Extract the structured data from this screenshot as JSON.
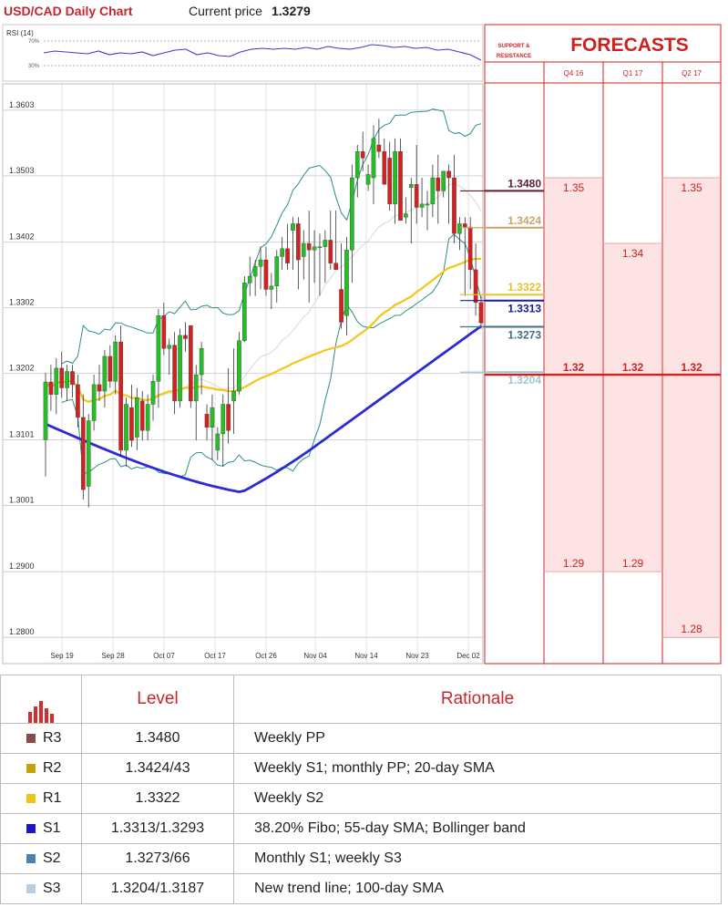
{
  "header": {
    "title": "USD/CAD Daily Chart",
    "price_label": "Current price",
    "price_value": "1.3279"
  },
  "chart_data": {
    "type": "candlestick",
    "title": "USD/CAD Daily Chart",
    "ylim": [
      1.276,
      1.3625
    ],
    "y_ticks": [
      "1.3603",
      "1.3503",
      "1.3402",
      "1.3302",
      "1.3202",
      "1.3101",
      "1.3001",
      "1.2900",
      "1.2800"
    ],
    "x_ticks": [
      "Sep 19",
      "Sep 28",
      "Oct 07",
      "Oct 17",
      "Oct 26",
      "Nov 04",
      "Nov 14",
      "Nov 23",
      "Dec 02"
    ],
    "rsi": {
      "label": "RSI (14)",
      "levels": [
        "70%",
        "30%"
      ]
    },
    "series_colors": {
      "sma20": "#f5c518",
      "sma55": "#2a2ad6",
      "bollinger": "#2e8b8b",
      "bull": "#22c022",
      "bear": "#d62020"
    },
    "candles": [
      [
        1.3101,
        1.3203,
        1.3045,
        1.3189
      ],
      [
        1.3189,
        1.3215,
        1.3145,
        1.317
      ],
      [
        1.317,
        1.3225,
        1.314,
        1.321
      ],
      [
        1.321,
        1.3235,
        1.3165,
        1.318
      ],
      [
        1.318,
        1.3215,
        1.316,
        1.3205
      ],
      [
        1.3205,
        1.3215,
        1.3165,
        1.3185
      ],
      [
        1.3185,
        1.32,
        1.312,
        1.3135
      ],
      [
        1.3135,
        1.317,
        1.301,
        1.3025
      ],
      [
        1.303,
        1.314,
        1.2998,
        1.313
      ],
      [
        1.313,
        1.32,
        1.3115,
        1.3185
      ],
      [
        1.3185,
        1.3215,
        1.316,
        1.3175
      ],
      [
        1.3175,
        1.3238,
        1.315,
        1.3228
      ],
      [
        1.3228,
        1.3245,
        1.318,
        1.319
      ],
      [
        1.319,
        1.326,
        1.317,
        1.325
      ],
      [
        1.325,
        1.3275,
        1.3075,
        1.3085
      ],
      [
        1.3085,
        1.3165,
        1.306,
        1.3155
      ],
      [
        1.315,
        1.3185,
        1.309,
        1.31
      ],
      [
        1.3105,
        1.318,
        1.3085,
        1.3165
      ],
      [
        1.316,
        1.3175,
        1.31,
        1.3115
      ],
      [
        1.3115,
        1.317,
        1.31,
        1.3155
      ],
      [
        1.3155,
        1.32,
        1.313,
        1.319
      ],
      [
        1.319,
        1.33,
        1.315,
        1.329
      ],
      [
        1.329,
        1.331,
        1.323,
        1.324
      ],
      [
        1.324,
        1.3255,
        1.32,
        1.3245
      ],
      [
        1.3245,
        1.3265,
        1.314,
        1.316
      ],
      [
        1.316,
        1.327,
        1.315,
        1.326
      ],
      [
        1.326,
        1.328,
        1.3235,
        1.3255
      ],
      [
        1.3275,
        1.3275,
        1.315,
        1.316
      ],
      [
        1.316,
        1.3215,
        1.31,
        1.32
      ],
      [
        1.32,
        1.325,
        1.317,
        1.324
      ],
      [
        1.314,
        1.3155,
        1.31,
        1.312
      ],
      [
        1.312,
        1.317,
        1.307,
        1.315
      ],
      [
        1.3085,
        1.312,
        1.307,
        1.311
      ],
      [
        1.311,
        1.317,
        1.306,
        1.3155
      ],
      [
        1.3155,
        1.321,
        1.3095,
        1.3115
      ],
      [
        1.316,
        1.324,
        1.311,
        1.3175
      ],
      [
        1.3175,
        1.3265,
        1.317,
        1.3252
      ],
      [
        1.3252,
        1.335,
        1.325,
        1.334
      ],
      [
        1.334,
        1.338,
        1.332,
        1.335
      ],
      [
        1.335,
        1.3375,
        1.332,
        1.3365
      ],
      [
        1.3365,
        1.3395,
        1.333,
        1.3375
      ],
      [
        1.3375,
        1.3395,
        1.332,
        1.333
      ],
      [
        1.333,
        1.3355,
        1.33,
        1.3335
      ],
      [
        1.3335,
        1.339,
        1.331,
        1.338
      ],
      [
        1.338,
        1.341,
        1.336,
        1.3392
      ],
      [
        1.3392,
        1.343,
        1.336,
        1.337
      ],
      [
        1.342,
        1.344,
        1.336,
        1.343
      ],
      [
        1.343,
        1.344,
        1.333,
        1.3375
      ],
      [
        1.338,
        1.342,
        1.3345,
        1.34
      ],
      [
        1.34,
        1.345,
        1.331,
        1.339
      ],
      [
        1.339,
        1.342,
        1.334,
        1.3395
      ],
      [
        1.3395,
        1.3415,
        1.332,
        1.3395
      ],
      [
        1.3395,
        1.342,
        1.334,
        1.3405
      ],
      [
        1.3405,
        1.345,
        1.336,
        1.337
      ],
      [
        1.337,
        1.345,
        1.336,
        1.336
      ],
      [
        1.333,
        1.34,
        1.327,
        1.328
      ],
      [
        1.329,
        1.341,
        1.326,
        1.339
      ],
      [
        1.339,
        1.352,
        1.334,
        1.35
      ],
      [
        1.35,
        1.355,
        1.347,
        1.354
      ],
      [
        1.354,
        1.357,
        1.351,
        1.353
      ],
      [
        1.349,
        1.352,
        1.348,
        1.3505
      ],
      [
        1.35,
        1.358,
        1.346,
        1.356
      ],
      [
        1.355,
        1.359,
        1.353,
        1.354
      ],
      [
        1.354,
        1.356,
        1.349,
        1.349
      ],
      [
        1.353,
        1.3555,
        1.345,
        1.346
      ],
      [
        1.346,
        1.356,
        1.343,
        1.354
      ],
      [
        1.354,
        1.356,
        1.344,
        1.3435
      ],
      [
        1.344,
        1.347,
        1.343,
        1.3445
      ],
      [
        1.3485,
        1.35,
        1.34,
        1.349
      ],
      [
        1.349,
        1.355,
        1.343,
        1.3455
      ],
      [
        1.3455,
        1.35,
        1.344,
        1.346
      ],
      [
        1.346,
        1.348,
        1.342,
        1.346
      ],
      [
        1.346,
        1.352,
        1.344,
        1.35
      ],
      [
        1.35,
        1.3535,
        1.343,
        1.348
      ],
      [
        1.348,
        1.351,
        1.347,
        1.351
      ],
      [
        1.351,
        1.352,
        1.343,
        1.35
      ],
      [
        1.35,
        1.3535,
        1.34,
        1.3415
      ],
      [
        1.3415,
        1.344,
        1.339,
        1.343
      ],
      [
        1.343,
        1.344,
        1.332,
        1.3425
      ],
      [
        1.3425,
        1.344,
        1.333,
        1.336
      ],
      [
        1.336,
        1.34,
        1.329,
        1.331
      ],
      [
        1.331,
        1.332,
        1.327,
        1.3279
      ]
    ],
    "levels": [
      {
        "value": "1.3480",
        "color": "#5a1e2e"
      },
      {
        "value": "1.3424",
        "color": "#c9a56a"
      },
      {
        "value": "1.3322",
        "color": "#e8c12b"
      },
      {
        "value": "1.3313",
        "color": "#1a1a9c"
      },
      {
        "value": "1.3273",
        "color": "#3f6f8a"
      },
      {
        "value": "1.3204",
        "color": "#9fc6d6"
      }
    ],
    "forecasts": {
      "title": "FORECASTS",
      "sr_label_line1": "SUPPORT &",
      "sr_label_line2": "RESISTANCE",
      "columns": [
        "Q4 16",
        "Q1 17",
        "Q2 17"
      ],
      "highs": [
        "1.35",
        "1.34",
        "1.35"
      ],
      "mids": [
        "1.32",
        "1.32",
        "1.32"
      ],
      "lows": [
        "1.29",
        "1.29",
        "1.28"
      ]
    }
  },
  "table": {
    "headers": {
      "level": "Level",
      "rationale": "Rationale"
    },
    "rows": [
      {
        "code": "R3",
        "color": "#8b4a4a",
        "level": "1.3480",
        "rationale": "Weekly PP"
      },
      {
        "code": "R2",
        "color": "#c9a00a",
        "level": "1.3424/43",
        "rationale": "Weekly S1; monthly PP; 20-day SMA"
      },
      {
        "code": "R1",
        "color": "#f3c21a",
        "level": "1.3322",
        "rationale": "Weekly S2"
      },
      {
        "code": "S1",
        "color": "#1818c8",
        "level": "1.3313/1.3293",
        "rationale": "38.20% Fibo; 55-day SMA; Bollinger band"
      },
      {
        "code": "S2",
        "color": "#4a82b8",
        "level": "1.3273/66",
        "rationale": "Monthly S1; weekly S3"
      },
      {
        "code": "S3",
        "color": "#b6cfe4",
        "level": "1.3204/1.3187",
        "rationale": "New trend line; 100-day SMA"
      }
    ]
  }
}
